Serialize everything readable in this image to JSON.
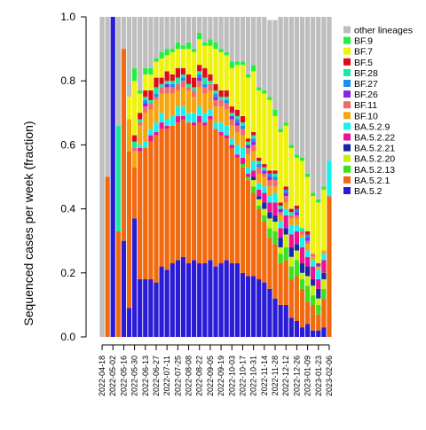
{
  "chart_data": {
    "type": "bar",
    "stacked": true,
    "ylabel": "Sequenced cases per week (fraction)",
    "ylim": [
      0,
      1
    ],
    "yticks": [
      "0.0",
      "0.2",
      "0.4",
      "0.6",
      "0.8",
      "1.0"
    ],
    "yticks_values": [
      0,
      0.2,
      0.4,
      0.6,
      0.8,
      1.0
    ],
    "categories": [
      "2022-04-18",
      "2022-04-25",
      "2022-05-02",
      "2022-05-09",
      "2022-05-16",
      "2022-05-23",
      "2022-05-30",
      "2022-06-06",
      "2022-06-13",
      "2022-06-20",
      "2022-06-27",
      "2022-07-04",
      "2022-07-11",
      "2022-07-18",
      "2022-07-25",
      "2022-08-01",
      "2022-08-08",
      "2022-08-15",
      "2022-08-22",
      "2022-08-29",
      "2022-09-05",
      "2022-09-12",
      "2022-09-19",
      "2022-09-26",
      "2022-10-03",
      "2022-10-10",
      "2022-10-17",
      "2022-10-24",
      "2022-10-31",
      "2022-11-07",
      "2022-11-14",
      "2022-11-21",
      "2022-11-28",
      "2022-12-05",
      "2022-12-12",
      "2022-12-19",
      "2022-12-26",
      "2023-01-02",
      "2023-01-09",
      "2023-01-16",
      "2023-01-23",
      "2023-01-30",
      "2023-02-06"
    ],
    "xtick_labels": [
      "2022-04-18",
      "2022-05-02",
      "2022-05-16",
      "2022-05-30",
      "2022-06-13",
      "2022-06-27",
      "2022-07-11",
      "2022-07-25",
      "2022-08-08",
      "2022-08-22",
      "2022-09-05",
      "2022-09-19",
      "2022-10-03",
      "2022-10-17",
      "2022-10-31",
      "2022-11-14",
      "2022-11-28",
      "2022-12-12",
      "2022-12-26",
      "2023-01-09",
      "2023-01-23",
      "2023-02-06"
    ],
    "colors": {
      "BA.5.2": "#2a1bd6",
      "BA.5.2.1": "#f26a0f",
      "BA.5.2.13": "#3be01e",
      "BA.5.2.20": "#c8f00b",
      "BA.5.2.21": "#1628a8",
      "BA.5.2.22": "#ee1193",
      "BA.5.2.9": "#18f0f0",
      "BF.10": "#f5a50f",
      "BF.11": "#f26a6a",
      "BF.26": "#8a23e6",
      "BF.27": "#1b8ff0",
      "BF.28": "#18e8a0",
      "BF.5": "#e00a1a",
      "BF.7": "#eef20c",
      "BF.9": "#20f040",
      "other lineages": "#bebebe"
    },
    "legend": {
      "placement": "right",
      "order": [
        "other lineages",
        "BF.9",
        "BF.7",
        "BF.5",
        "BF.28",
        "BF.27",
        "BF.26",
        "BF.11",
        "BF.10",
        "BA.5.2.9",
        "BA.5.2.22",
        "BA.5.2.21",
        "BA.5.2.20",
        "BA.5.2.13",
        "BA.5.2.1",
        "BA.5.2"
      ]
    },
    "stack_order": [
      "BA.5.2",
      "BA.5.2.1",
      "BA.5.2.13",
      "BA.5.2.20",
      "BA.5.2.21",
      "BA.5.2.22",
      "BA.5.2.9",
      "BF.10",
      "BF.11",
      "BF.26",
      "BF.27",
      "BF.28",
      "BF.5",
      "BF.7",
      "BF.9",
      "other lineages"
    ],
    "series": [
      {
        "name": "BA.5.2",
        "values": [
          0,
          0,
          1.0,
          0,
          0.3,
          0.09,
          0.37,
          0.18,
          0.18,
          0.18,
          0.17,
          0.22,
          0.21,
          0.23,
          0.24,
          0.25,
          0.23,
          0.24,
          0.23,
          0.23,
          0.24,
          0.22,
          0.23,
          0.24,
          0.23,
          0.23,
          0.2,
          0.19,
          0.19,
          0.18,
          0.17,
          0.15,
          0.12,
          0.1,
          0.1,
          0.06,
          0.05,
          0.03,
          0.04,
          0.02,
          0.02,
          0.03,
          0.0
        ]
      },
      {
        "name": "BA.5.2.1",
        "values": [
          0,
          0.5,
          0,
          0.33,
          0.6,
          0.49,
          0.16,
          0.4,
          0.41,
          0.43,
          0.46,
          0.43,
          0.44,
          0.43,
          0.43,
          0.43,
          0.44,
          0.42,
          0.44,
          0.43,
          0.44,
          0.43,
          0.4,
          0.38,
          0.36,
          0.33,
          0.33,
          0.3,
          0.26,
          0.22,
          0.19,
          0.16,
          0.17,
          0.13,
          0.14,
          0.12,
          0.14,
          0.12,
          0.07,
          0.08,
          0.05,
          0.09,
          0.44
        ]
      },
      {
        "name": "BA.5.2.13",
        "values": [
          0,
          0,
          0,
          0,
          0,
          0,
          0,
          0,
          0,
          0,
          0,
          0,
          0,
          0,
          0,
          0,
          0,
          0,
          0,
          0,
          0,
          0,
          0,
          0,
          0,
          0,
          0.01,
          0.01,
          0.02,
          0.01,
          0.02,
          0.03,
          0.04,
          0.03,
          0.04,
          0.04,
          0.05,
          0.03,
          0.05,
          0.03,
          0.03,
          0.03,
          0
        ]
      },
      {
        "name": "BA.5.2.20",
        "values": [
          0,
          0,
          0,
          0,
          0,
          0,
          0,
          0,
          0,
          0,
          0,
          0,
          0,
          0,
          0,
          0,
          0,
          0,
          0,
          0,
          0,
          0,
          0,
          0,
          0,
          0,
          0,
          0,
          0.02,
          0.02,
          0.02,
          0.03,
          0.03,
          0.02,
          0.04,
          0.03,
          0.03,
          0.02,
          0.03,
          0.03,
          0.02,
          0.03,
          0
        ]
      },
      {
        "name": "BA.5.2.21",
        "values": [
          0,
          0,
          0,
          0,
          0,
          0,
          0,
          0,
          0,
          0,
          0,
          0,
          0,
          0,
          0,
          0,
          0,
          0,
          0,
          0,
          0,
          0,
          0,
          0,
          0,
          0,
          0,
          0,
          0.01,
          0.01,
          0.02,
          0.02,
          0.02,
          0.03,
          0.02,
          0.03,
          0.02,
          0.03,
          0.03,
          0.02,
          0.03,
          0.02,
          0
        ]
      },
      {
        "name": "BA.5.2.22",
        "values": [
          0,
          0,
          0,
          0,
          0,
          0,
          0,
          0.01,
          0,
          0.02,
          0.01,
          0.02,
          0.01,
          0,
          0.02,
          0.01,
          0,
          0.01,
          0.02,
          0.01,
          0.01,
          0,
          0.01,
          0.01,
          0.01,
          0.01,
          0.02,
          0.01,
          0.02,
          0.02,
          0.03,
          0.03,
          0.04,
          0.03,
          0.04,
          0.04,
          0.04,
          0.05,
          0.03,
          0.04,
          0.03,
          0.04,
          0
        ]
      },
      {
        "name": "BA.5.2.9",
        "values": [
          0,
          0,
          0,
          0,
          0,
          0,
          0,
          0.01,
          0.02,
          0.02,
          0.03,
          0.03,
          0.02,
          0.03,
          0.03,
          0.03,
          0.03,
          0.03,
          0.03,
          0.03,
          0.02,
          0.02,
          0.03,
          0.03,
          0.02,
          0.03,
          0.03,
          0.02,
          0.03,
          0.02,
          0.02,
          0.02,
          0.03,
          0.02,
          0.02,
          0.03,
          0.02,
          0.03,
          0.02,
          0.02,
          0.03,
          0.02,
          0.11
        ]
      },
      {
        "name": "BF.10",
        "values": [
          0,
          0,
          0,
          0,
          0,
          0.1,
          0.05,
          0.06,
          0.09,
          0.06,
          0.07,
          0.06,
          0.08,
          0.07,
          0.05,
          0.06,
          0.07,
          0.05,
          0.06,
          0.06,
          0.06,
          0.05,
          0.05,
          0.05,
          0.04,
          0.04,
          0.04,
          0.04,
          0.03,
          0.03,
          0.03,
          0.03,
          0.02,
          0.02,
          0.02,
          0.02,
          0.02,
          0.01,
          0.02,
          0.01,
          0.01,
          0.01,
          0
        ]
      },
      {
        "name": "BF.11",
        "values": [
          0,
          0,
          0,
          0,
          0,
          0,
          0.01,
          0.01,
          0.02,
          0.02,
          0.01,
          0.02,
          0.02,
          0.02,
          0.02,
          0.02,
          0.01,
          0.02,
          0.02,
          0.02,
          0.02,
          0.02,
          0.02,
          0.02,
          0.02,
          0.02,
          0.02,
          0.02,
          0.02,
          0.02,
          0.01,
          0.02,
          0.02,
          0.01,
          0.02,
          0.01,
          0.01,
          0.01,
          0.01,
          0.01,
          0,
          0,
          0
        ]
      },
      {
        "name": "BF.26",
        "values": [
          0,
          0,
          0,
          0,
          0,
          0,
          0,
          0,
          0.01,
          0,
          0,
          0,
          0.01,
          0,
          0,
          0,
          0,
          0,
          0.01,
          0,
          0,
          0.01,
          0,
          0,
          0.01,
          0.01,
          0,
          0.01,
          0.01,
          0,
          0.01,
          0.01,
          0,
          0.01,
          0.01,
          0,
          0.01,
          0,
          0.01,
          0,
          0.01,
          0,
          0
        ]
      },
      {
        "name": "BF.27",
        "values": [
          0,
          0,
          0,
          0,
          0,
          0,
          0,
          0,
          0.01,
          0,
          0.01,
          0,
          0,
          0.01,
          0,
          0.01,
          0,
          0,
          0.01,
          0.01,
          0,
          0.01,
          0,
          0.01,
          0,
          0.01,
          0.01,
          0,
          0.01,
          0.01,
          0,
          0.01,
          0.01,
          0,
          0.01,
          0,
          0.01,
          0,
          0.01,
          0,
          0,
          0,
          0
        ]
      },
      {
        "name": "BF.28",
        "values": [
          0,
          0,
          0,
          0.33,
          0,
          0,
          0.02,
          0.01,
          0.01,
          0.01,
          0.02,
          0.01,
          0.01,
          0.01,
          0.02,
          0.01,
          0.01,
          0.01,
          0.01,
          0.02,
          0.01,
          0.01,
          0.01,
          0.01,
          0.01,
          0.01,
          0.01,
          0.01,
          0.01,
          0.01,
          0.01,
          0,
          0.01,
          0.01,
          0,
          0.01,
          0,
          0.01,
          0,
          0,
          0,
          0,
          0
        ]
      },
      {
        "name": "BF.5",
        "values": [
          0,
          0,
          0,
          0,
          0,
          0,
          0.02,
          0.02,
          0.02,
          0.03,
          0.03,
          0.02,
          0.03,
          0.02,
          0.03,
          0.02,
          0.03,
          0.03,
          0.02,
          0.03,
          0.02,
          0.02,
          0.02,
          0.02,
          0.02,
          0.02,
          0.02,
          0.01,
          0.01,
          0.01,
          0.01,
          0.01,
          0.01,
          0.01,
          0.01,
          0.01,
          0.01,
          0,
          0.01,
          0,
          0,
          0,
          0
        ]
      },
      {
        "name": "BF.7",
        "values": [
          0,
          0,
          0,
          0,
          0,
          0.07,
          0.17,
          0.06,
          0.05,
          0.05,
          0.05,
          0.06,
          0.05,
          0.07,
          0.06,
          0.06,
          0.08,
          0.08,
          0.08,
          0.07,
          0.09,
          0.11,
          0.12,
          0.11,
          0.12,
          0.14,
          0.16,
          0.19,
          0.19,
          0.21,
          0.22,
          0.22,
          0.17,
          0.22,
          0.19,
          0.19,
          0.15,
          0.21,
          0.17,
          0.18,
          0.19,
          0.19,
          0
        ]
      },
      {
        "name": "BF.9",
        "values": [
          0,
          0,
          0,
          0,
          0,
          0,
          0.04,
          0.01,
          0.02,
          0.02,
          0.01,
          0.02,
          0.02,
          0.01,
          0.02,
          0.01,
          0.02,
          0.01,
          0.02,
          0.01,
          0.02,
          0.02,
          0.01,
          0.01,
          0.02,
          0.01,
          0.01,
          0.01,
          0.02,
          0.01,
          0.01,
          0.01,
          0.02,
          0.01,
          0.01,
          0.01,
          0.01,
          0.01,
          0.01,
          0.01,
          0.01,
          0.01,
          0
        ]
      },
      {
        "name": "other lineages",
        "values": [
          1.0,
          0.5,
          0,
          0.34,
          0.1,
          0.25,
          0.16,
          0.23,
          0.17,
          0.16,
          0.13,
          0.11,
          0.1,
          0.1,
          0.08,
          0.09,
          0.08,
          0.1,
          0.05,
          0.08,
          0.07,
          0.08,
          0.1,
          0.11,
          0.14,
          0.14,
          0.14,
          0.18,
          0.17,
          0.22,
          0.23,
          0.24,
          0.28,
          0.35,
          0.35,
          0.4,
          0.43,
          0.46,
          0.5,
          0.55,
          0.57,
          0.53,
          0.45
        ]
      }
    ]
  }
}
